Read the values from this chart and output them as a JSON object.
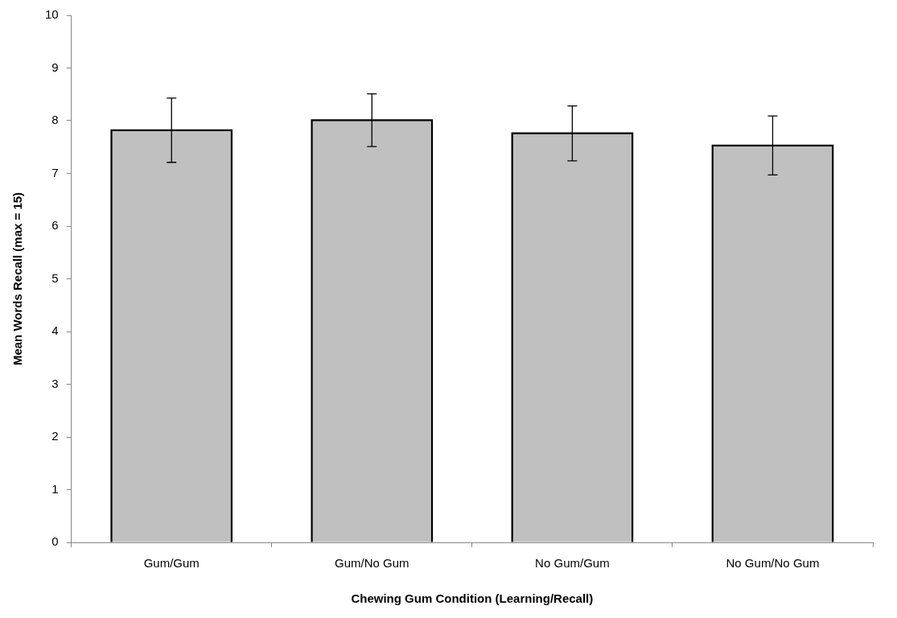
{
  "chart_data": {
    "type": "bar",
    "xlabel": "Chewing Gum Condition (Learning/Recall)",
    "ylabel": "Mean Words Recall (max = 15)",
    "categories": [
      "Gum/Gum",
      "Gum/No Gum",
      "No Gum/Gum",
      "No Gum/No Gum"
    ],
    "values": [
      7.82,
      8.01,
      7.76,
      7.53
    ],
    "errors": [
      0.61,
      0.5,
      0.52,
      0.56
    ],
    "color": "#c0c0c0",
    "ylim": [
      0,
      10
    ],
    "yticks": [
      0,
      1,
      2,
      3,
      4,
      5,
      6,
      7,
      8,
      9,
      10
    ],
    "grid": false,
    "legend": false
  }
}
